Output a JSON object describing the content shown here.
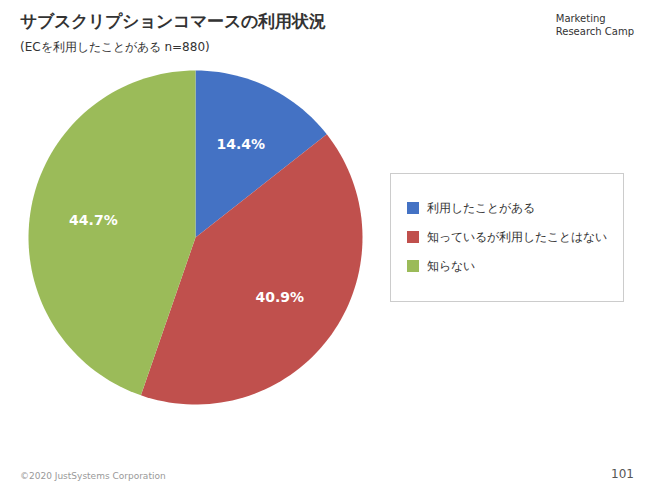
{
  "chart_data": {
    "type": "pie",
    "title": "サブスクリプションコマースの利用状況",
    "subtitle": "(ECを利用したことがある n=880)",
    "categories": [
      "利用したことがある",
      "知っているが利用したことはない",
      "知らない"
    ],
    "values": [
      14.4,
      40.9,
      44.7
    ],
    "value_labels": [
      "14.4%",
      "40.9%",
      "44.7%"
    ],
    "colors": [
      "#4472C4",
      "#C0504D",
      "#9BBB59"
    ],
    "data_labels": true,
    "legend": "right",
    "annotations": [
      "Marketing",
      "Research Camp",
      "©2020 JustSystems Corporation",
      "101"
    ]
  }
}
